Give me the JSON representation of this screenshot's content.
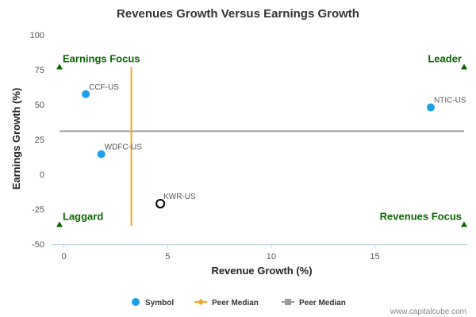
{
  "chart_data": {
    "type": "scatter",
    "title": "Revenues Growth Versus Earnings Growth",
    "xlabel": "Revenue Growth (%)",
    "ylabel": "Earnings Growth (%)",
    "xlim": [
      -0.6,
      19.5
    ],
    "ylim": [
      -50,
      100
    ],
    "x_ticks": [
      0,
      5,
      10,
      15
    ],
    "y_ticks": [
      -50,
      -25,
      0,
      25,
      50,
      75,
      100
    ],
    "grid": false,
    "points": [
      {
        "name": "CCF-US",
        "x": 1.05,
        "y": 57.5,
        "style": "filled"
      },
      {
        "name": "WDFC-US",
        "x": 1.8,
        "y": 14.5,
        "style": "filled"
      },
      {
        "name": "KWR-US",
        "x": 4.65,
        "y": -21,
        "style": "hollow"
      },
      {
        "name": "NTIC-US",
        "x": 17.7,
        "y": 48,
        "style": "filled"
      }
    ],
    "peer_median_x": 3.25,
    "peer_median_x_range": [
      -37,
      77
    ],
    "peer_median_y": 31,
    "quadrants": [
      {
        "label": "Earnings Focus",
        "corner": "top-left",
        "marker_x": -0.6,
        "marker_y": 77
      },
      {
        "label": "Leader",
        "corner": "top-right",
        "marker_x": 19.5,
        "marker_y": 77
      },
      {
        "label": "Laggard",
        "corner": "bottom-left",
        "marker_x": -0.6,
        "marker_y": -36
      },
      {
        "label": "Revenues Focus",
        "corner": "bottom-right",
        "marker_x": 19.5,
        "marker_y": -36
      }
    ],
    "legend": {
      "placement": "bottom",
      "items": [
        {
          "label": "Symbol",
          "marker": "circle",
          "color": "#1a9fe8"
        },
        {
          "label": "Peer Median",
          "marker": "diamond-line",
          "color": "#f5a623"
        },
        {
          "label": "Peer Median",
          "marker": "square-line",
          "color": "#999999"
        }
      ]
    },
    "colors": {
      "point": "#1a9fe8",
      "vertical_median": "#f5a623",
      "horizontal_median": "#999999",
      "quadrant": "#0a6600",
      "axis_line": "#c0d8e0"
    }
  },
  "credit": "www.capitalcube.com"
}
